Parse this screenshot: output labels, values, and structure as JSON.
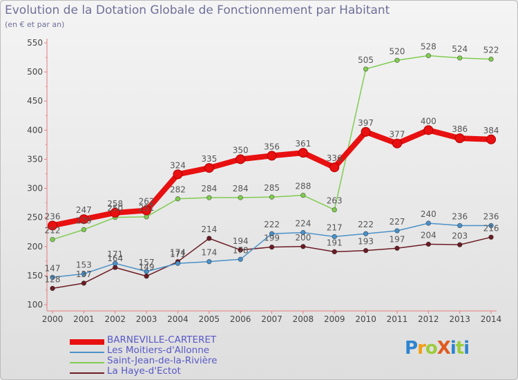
{
  "title": "Evolution de la Dotation Globale de Fonctionnement par Habitant",
  "subtitle": "(en € et par an)",
  "brand": "ProXiti",
  "chart_data": {
    "type": "line",
    "title": "Evolution de la Dotation Globale de Fonctionnement par Habitant",
    "subtitle": "(en € et par an)",
    "xlabel": "",
    "ylabel": "",
    "ylim": [
      100,
      550
    ],
    "yticks": [
      100,
      150,
      200,
      250,
      300,
      350,
      400,
      450,
      500,
      550
    ],
    "grid": false,
    "legend_position": "bottom-left",
    "categories": [
      "2000",
      "2001",
      "2002",
      "2003",
      "2004",
      "2005",
      "2006",
      "2007",
      "2008",
      "2009",
      "2010",
      "2011",
      "2012",
      "2013",
      "2014"
    ],
    "series": [
      {
        "name": "BARNEVILLE-CARTERET",
        "color": "#e81010",
        "values": [
          236,
          247,
          258,
          262,
          324,
          335,
          350,
          356,
          361,
          336,
          397,
          377,
          400,
          386,
          384
        ]
      },
      {
        "name": "Les Moitiers-d'Allonne",
        "color": "#4a90c8",
        "values": [
          147,
          153,
          171,
          157,
          171,
          174,
          178,
          222,
          224,
          217,
          222,
          227,
          240,
          236,
          236
        ]
      },
      {
        "name": "Saint-Jean-de-la-Rivière",
        "color": "#80cc50",
        "values": [
          212,
          229,
          250,
          251,
          282,
          284,
          284,
          285,
          288,
          263,
          505,
          520,
          528,
          524,
          522
        ]
      },
      {
        "name": "La Haye-d'Ectot",
        "color": "#6b1c24",
        "values": [
          128,
          137,
          164,
          149,
          174,
          214,
          194,
          199,
          200,
          191,
          193,
          197,
          204,
          203,
          216
        ]
      }
    ]
  }
}
